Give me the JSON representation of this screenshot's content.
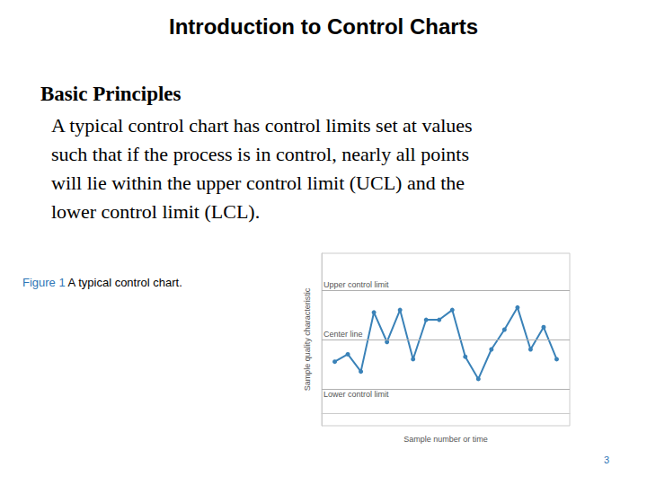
{
  "header": {
    "title": "Introduction to Control Charts"
  },
  "section": {
    "heading": "Basic Principles",
    "body_lines": [
      "A typical control chart has control limits set at values",
      "such that if the process is in control, nearly all points",
      "will lie within the upper control limit (UCL) and the",
      "lower control limit (LCL)."
    ]
  },
  "figure": {
    "label": "Figure 1",
    "caption": "A typical control chart."
  },
  "page_number": 3,
  "chart_data": {
    "type": "line",
    "x_label": "Sample number or time",
    "y_label": "Sample quality characteristic",
    "x": [
      1,
      2,
      3,
      4,
      5,
      6,
      7,
      8,
      9,
      10,
      11,
      12,
      13,
      14,
      15,
      16,
      17,
      18
    ],
    "values": [
      2.1,
      2.4,
      1.7,
      4.1,
      2.9,
      4.2,
      2.2,
      3.8,
      3.8,
      4.2,
      2.3,
      1.4,
      2.6,
      3.4,
      4.3,
      2.6,
      3.5,
      2.2
    ],
    "color": "#3a82b8",
    "marker": "circle",
    "xlim": [
      0,
      19
    ],
    "ylim": [
      -0.5,
      6.5
    ],
    "tick_labels": false,
    "grid": false,
    "reference_lines": [
      {
        "value": 5,
        "label": "Upper control limit"
      },
      {
        "value": 3,
        "label": "Center line"
      },
      {
        "value": 1,
        "label": "Lower control limit"
      }
    ]
  }
}
